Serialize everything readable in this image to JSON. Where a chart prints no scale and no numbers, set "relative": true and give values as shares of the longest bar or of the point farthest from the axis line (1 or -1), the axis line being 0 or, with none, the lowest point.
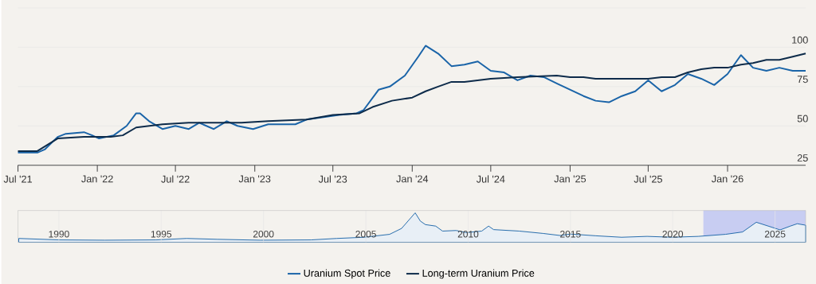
{
  "chart_data": [
    {
      "type": "line",
      "xlim": [
        "2021-07-01",
        "2026-07-01"
      ],
      "xticks": [
        {
          "value": "2021-07-01",
          "label": "Jul '21"
        },
        {
          "value": "2022-01-01",
          "label": "Jan '22"
        },
        {
          "value": "2022-07-01",
          "label": "Jul '22"
        },
        {
          "value": "2023-01-01",
          "label": "Jan '23"
        },
        {
          "value": "2023-07-01",
          "label": "Jul '23"
        },
        {
          "value": "2024-01-01",
          "label": "Jan '24"
        },
        {
          "value": "2024-07-01",
          "label": "Jul '24"
        },
        {
          "value": "2025-01-01",
          "label": "Jan '25"
        },
        {
          "value": "2025-07-01",
          "label": "Jul '25"
        },
        {
          "value": "2026-01-01",
          "label": "Jan '26"
        }
      ],
      "ylim": [
        25,
        125
      ],
      "yticks": [
        25,
        50,
        75,
        100,
        {
          "value": 125,
          "label": null
        }
      ],
      "grid": "y",
      "legend": "bottom",
      "series": [
        {
          "name": "Uranium Spot Price",
          "color": "#1a64a8",
          "x": [
            "2021-07-01",
            "2021-08-15",
            "2021-09-01",
            "2021-10-01",
            "2021-10-20",
            "2021-12-01",
            "2021-12-20",
            "2022-01-05",
            "2022-02-08",
            "2022-03-10",
            "2022-04-01",
            "2022-04-10",
            "2022-05-01",
            "2022-06-01",
            "2022-07-01",
            "2022-08-01",
            "2022-08-25",
            "2022-09-28",
            "2022-10-28",
            "2022-11-22",
            "2022-12-28",
            "2023-02-01",
            "2023-03-01",
            "2023-04-05",
            "2023-05-01",
            "2023-07-15",
            "2023-08-25",
            "2023-09-10",
            "2023-10-15",
            "2023-11-10",
            "2023-12-15",
            "2024-01-15",
            "2024-02-01",
            "2024-03-01",
            "2024-04-01",
            "2024-05-01",
            "2024-06-01",
            "2024-07-01",
            "2024-08-01",
            "2024-09-01",
            "2024-10-01",
            "2024-11-01",
            "2024-12-01",
            "2025-01-01",
            "2025-02-01",
            "2025-03-01",
            "2025-04-01",
            "2025-05-01",
            "2025-06-01",
            "2025-07-01",
            "2025-08-01",
            "2025-09-01",
            "2025-10-01",
            "2025-11-01",
            "2025-12-01",
            "2026-01-01",
            "2026-02-01",
            "2026-03-01",
            "2026-04-01",
            "2026-05-01",
            "2026-06-01",
            "2026-07-01"
          ],
          "values": [
            33,
            33,
            35,
            43,
            45,
            46,
            44,
            42,
            44,
            50,
            58,
            58,
            53,
            48,
            50,
            48,
            52,
            48,
            53,
            50,
            48,
            51,
            51,
            51,
            54,
            57,
            58,
            60,
            73,
            75,
            82,
            94,
            101,
            96,
            88,
            89,
            91,
            85,
            84,
            79,
            82,
            81,
            77,
            73,
            69,
            66,
            65,
            69,
            72,
            79,
            72,
            76,
            83,
            80,
            76,
            83,
            95,
            87,
            85,
            87,
            85,
            85
          ]
        },
        {
          "name": "Long-term Uranium Price",
          "color": "#0d2b4a",
          "x": [
            "2021-07-01",
            "2021-08-15",
            "2021-10-01",
            "2021-12-01",
            "2022-02-01",
            "2022-03-01",
            "2022-04-01",
            "2022-06-01",
            "2022-08-01",
            "2022-10-01",
            "2022-12-01",
            "2023-02-01",
            "2023-05-01",
            "2023-07-01",
            "2023-09-01",
            "2023-10-01",
            "2023-11-15",
            "2024-01-01",
            "2024-02-01",
            "2024-03-01",
            "2024-04-01",
            "2024-05-01",
            "2024-07-01",
            "2024-09-01",
            "2024-12-01",
            "2025-01-01",
            "2025-02-01",
            "2025-03-01",
            "2025-05-01",
            "2025-07-01",
            "2025-08-01",
            "2025-09-01",
            "2025-10-01",
            "2025-11-01",
            "2025-12-01",
            "2026-01-01",
            "2026-02-01",
            "2026-03-01",
            "2026-04-01",
            "2026-05-01",
            "2026-06-01",
            "2026-07-01"
          ],
          "values": [
            34,
            34,
            42,
            43,
            43,
            44,
            49,
            51,
            52,
            52,
            52,
            53,
            54,
            57,
            58,
            62,
            66,
            68,
            72,
            75,
            78,
            78,
            80,
            81,
            82,
            81,
            81,
            80,
            80,
            80,
            81,
            81,
            84,
            86,
            87,
            87,
            89,
            90,
            92,
            92,
            94,
            96
          ]
        }
      ]
    },
    {
      "type": "area",
      "relative": true,
      "xlim": [
        "1988-01-01",
        "2026-07-01"
      ],
      "xticks": [
        {
          "value": "1990-01-01",
          "label": "1990"
        },
        {
          "value": "1995-01-01",
          "label": "1995"
        },
        {
          "value": "2000-01-01",
          "label": "2000"
        },
        {
          "value": "2005-01-01",
          "label": "2005"
        },
        {
          "value": "2010-01-01",
          "label": "2010"
        },
        {
          "value": "2015-01-01",
          "label": "2015"
        },
        {
          "value": "2020-01-01",
          "label": "2020"
        },
        {
          "value": "2025-01-01",
          "label": "2025"
        }
      ],
      "grid": "x",
      "tick_labels": "x",
      "bands": [
        {
          "axis": "x",
          "from": "2021-07-01",
          "to": "2026-07-01",
          "color": "#c8cdf2"
        }
      ],
      "series": [
        {
          "color": "#1a64a8",
          "x": [
            "1988-01-15",
            "1990-01-01",
            "1992-04-01",
            "1994-10-01",
            "1996-04-01",
            "1997-10-01",
            "1999-11-01",
            "2002-05-01",
            "2003-08-01",
            "2004-12-01",
            "2006-03-01",
            "2006-10-01",
            "2007-03-01",
            "2007-06-01",
            "2007-09-01",
            "2007-12-01",
            "2008-06-01",
            "2008-10-01",
            "2009-06-01",
            "2009-12-01",
            "2010-09-01",
            "2011-01-01",
            "2011-04-01",
            "2012-07-01",
            "2013-09-01",
            "2014-07-01",
            "2015-01-01",
            "2016-04-01",
            "2017-07-01",
            "2018-10-01",
            "2020-01-01",
            "2021-04-01",
            "2022-08-01",
            "2023-06-01",
            "2024-02-01",
            "2024-09-01",
            "2025-04-01",
            "2025-10-01",
            "2026-02-01",
            "2026-07-01"
          ],
          "values": [
            0.13,
            0.08,
            0.07,
            0.08,
            0.13,
            0.1,
            0.07,
            0.08,
            0.13,
            0.17,
            0.27,
            0.47,
            0.8,
            1,
            0.72,
            0.6,
            0.55,
            0.38,
            0.4,
            0.33,
            0.38,
            0.55,
            0.43,
            0.38,
            0.3,
            0.23,
            0.28,
            0.22,
            0.17,
            0.2,
            0.17,
            0.2,
            0.27,
            0.35,
            0.68,
            0.55,
            0.42,
            0.55,
            0.63,
            0.58
          ]
        }
      ]
    }
  ]
}
